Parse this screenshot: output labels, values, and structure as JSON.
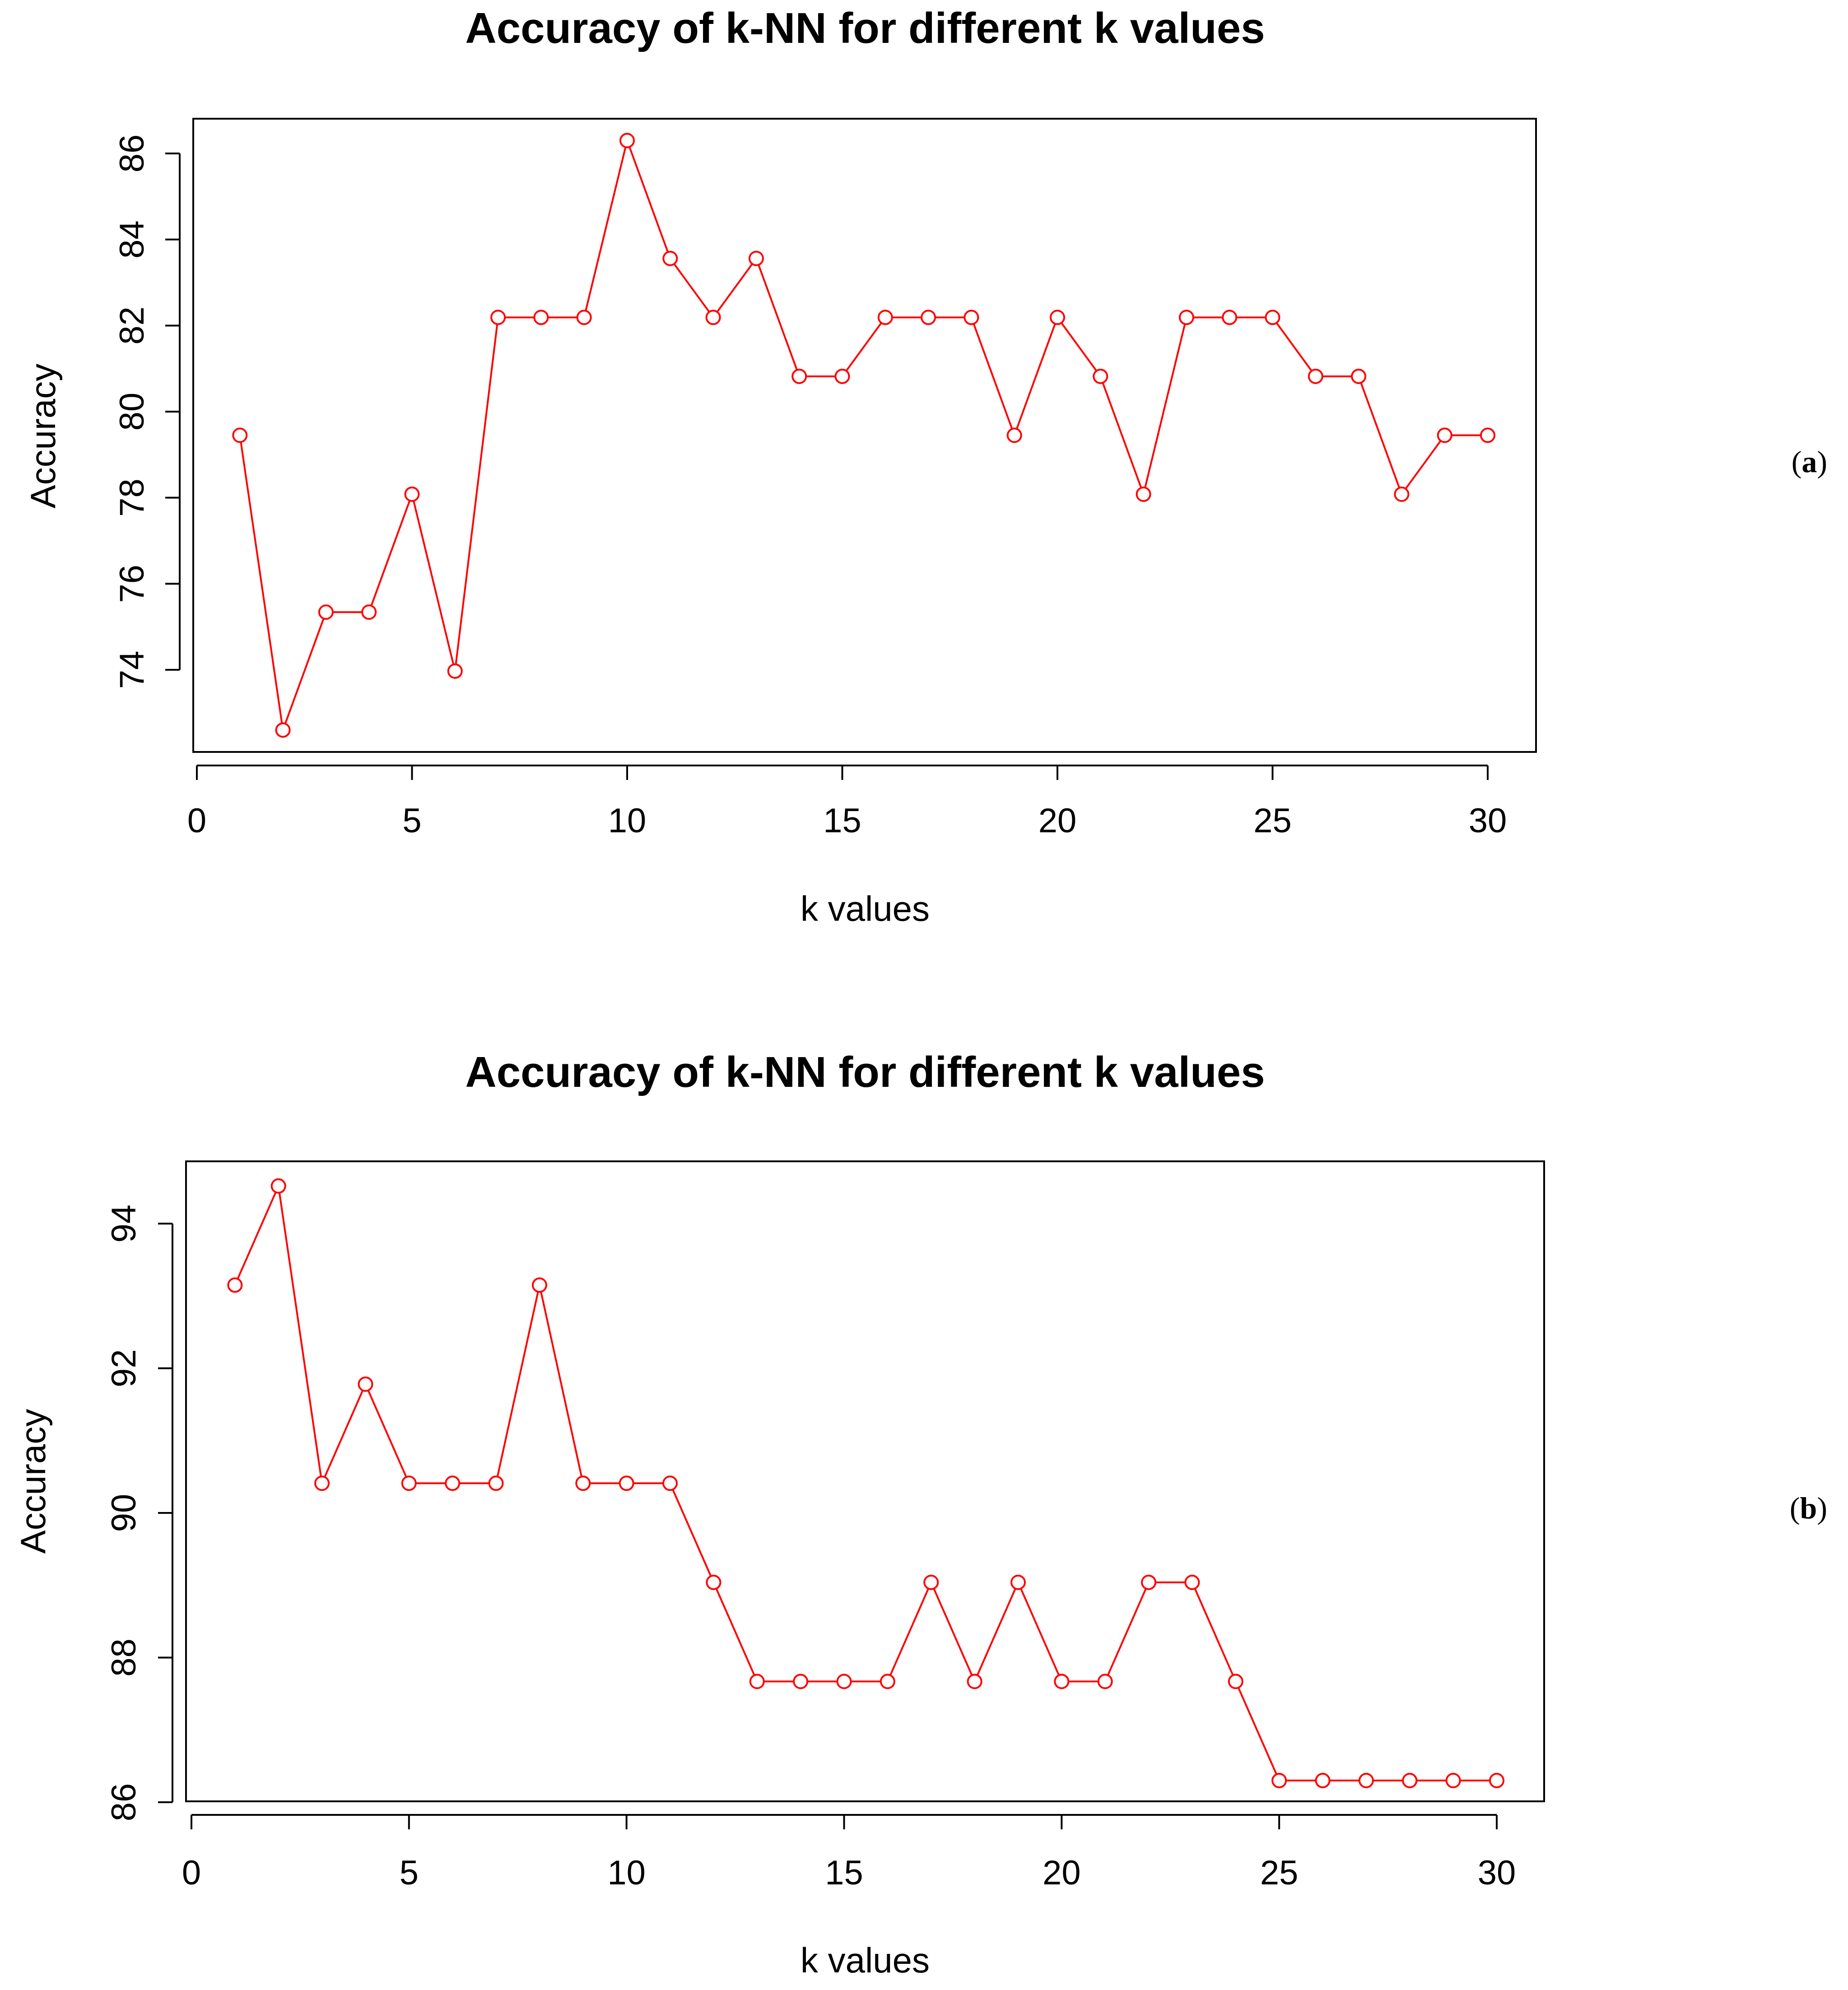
{
  "chart_data": [
    {
      "type": "line",
      "panel": "a",
      "title": "Accuracy of k-NN for different k values",
      "xlabel": "k values",
      "ylabel": "Accuracy",
      "xlim": [
        0,
        30
      ],
      "ylim": [
        72.6,
        86.3
      ],
      "xticks": [
        0,
        5,
        10,
        15,
        20,
        25,
        30
      ],
      "yticks": [
        74,
        76,
        78,
        80,
        82,
        84,
        86
      ],
      "grid": false,
      "color": "#ff0000",
      "series": [
        {
          "name": "Accuracy",
          "x": [
            1,
            2,
            3,
            4,
            5,
            6,
            7,
            8,
            9,
            10,
            11,
            12,
            13,
            14,
            15,
            16,
            17,
            18,
            19,
            20,
            21,
            22,
            23,
            24,
            25,
            26,
            27,
            28,
            29,
            30
          ],
          "values": [
            79.45,
            72.6,
            75.34,
            75.34,
            78.08,
            73.97,
            82.19,
            82.19,
            82.19,
            86.3,
            83.56,
            82.19,
            83.56,
            80.82,
            80.82,
            82.19,
            82.19,
            82.19,
            79.45,
            82.19,
            80.82,
            78.08,
            82.19,
            82.19,
            82.19,
            80.82,
            80.82,
            78.08,
            79.45,
            79.45
          ]
        }
      ]
    },
    {
      "type": "line",
      "panel": "b",
      "title": "Accuracy of k-NN for different k values",
      "xlabel": "k values",
      "ylabel": "Accuracy",
      "xlim": [
        0,
        30
      ],
      "ylim": [
        86.3,
        94.52
      ],
      "xticks": [
        0,
        5,
        10,
        15,
        20,
        25,
        30
      ],
      "yticks": [
        86,
        88,
        90,
        92,
        94
      ],
      "grid": false,
      "color": "#ff0000",
      "series": [
        {
          "name": "Accuracy",
          "x": [
            1,
            2,
            3,
            4,
            5,
            6,
            7,
            8,
            9,
            10,
            11,
            12,
            13,
            14,
            15,
            16,
            17,
            18,
            19,
            20,
            21,
            22,
            23,
            24,
            25,
            26,
            27,
            28,
            29,
            30
          ],
          "values": [
            93.15,
            94.52,
            90.41,
            91.78,
            90.41,
            90.41,
            90.41,
            93.15,
            90.41,
            90.41,
            90.41,
            89.04,
            87.67,
            87.67,
            87.67,
            87.67,
            89.04,
            87.67,
            89.04,
            87.67,
            87.67,
            89.04,
            89.04,
            87.67,
            86.3,
            86.3,
            86.3,
            86.3,
            86.3,
            86.3
          ]
        }
      ]
    }
  ],
  "panel_labels": [
    {
      "open": "(",
      "letter": "a",
      "close": ")"
    },
    {
      "open": "(",
      "letter": "b",
      "close": ")"
    }
  ]
}
